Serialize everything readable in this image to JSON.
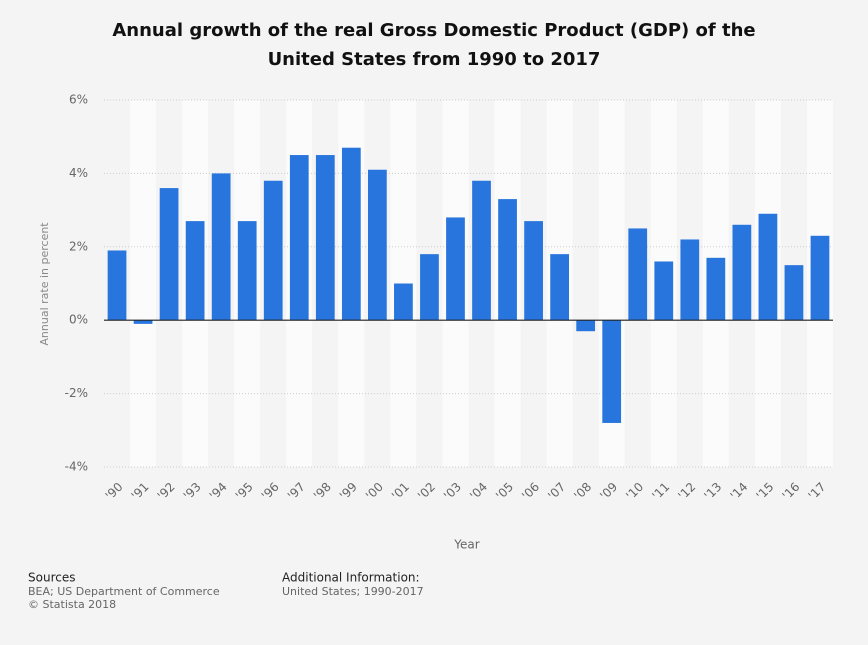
{
  "chart_data": {
    "type": "bar",
    "title": "Annual growth of the real Gross Domestic Product (GDP) of the United States from 1990 to 2017",
    "x_label": "Year",
    "y_label": "Annual rate in percent",
    "categories": [
      "'90",
      "'91",
      "'92",
      "'93",
      "'94",
      "'95",
      "'96",
      "'97",
      "'98",
      "'99",
      "'00",
      "'01",
      "'02",
      "'03",
      "'04",
      "'05",
      "'06",
      "'07",
      "'08",
      "'09",
      "'10",
      "'11",
      "'12",
      "'13",
      "'14",
      "'15",
      "'16",
      "'17"
    ],
    "values": [
      1.9,
      -0.1,
      3.6,
      2.7,
      4.0,
      2.7,
      3.8,
      4.5,
      4.5,
      4.7,
      4.1,
      1.0,
      1.8,
      2.8,
      3.8,
      3.3,
      2.7,
      1.8,
      -0.3,
      -2.8,
      2.5,
      1.6,
      2.2,
      1.7,
      2.6,
      2.9,
      1.5,
      2.3
    ],
    "color": "#2876dd",
    "ylim": [
      -4,
      6
    ],
    "yticks": [
      {
        "value": -4,
        "label": "-4%"
      },
      {
        "value": -2,
        "label": "-2%"
      },
      {
        "value": 0,
        "label": "0%"
      },
      {
        "value": 2,
        "label": "2%"
      },
      {
        "value": 4,
        "label": "4%"
      },
      {
        "value": 6,
        "label": "6%"
      }
    ],
    "grid": true
  },
  "footer": {
    "sources_title": "Sources",
    "sources": [
      "BEA; US Department of Commerce",
      "© Statista 2018"
    ],
    "info_title": "Additional Information:",
    "info": "United States; 1990-2017"
  }
}
